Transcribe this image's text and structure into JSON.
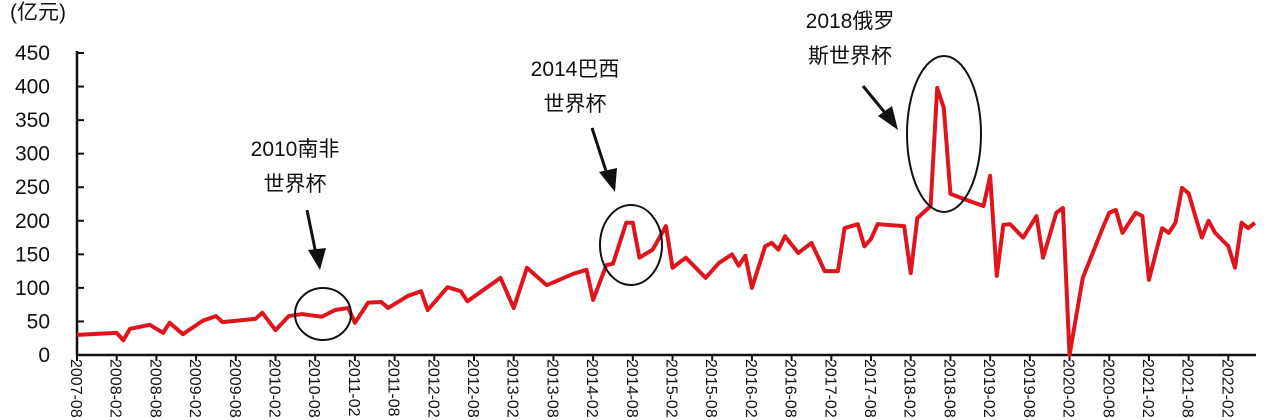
{
  "chart_data": {
    "type": "line",
    "title": "",
    "ylabel": "(亿元)",
    "xlabel": "",
    "ylim": [
      0,
      450
    ],
    "yticks": [
      "0",
      "50",
      "100",
      "150",
      "200",
      "250",
      "300",
      "350",
      "400",
      "450"
    ],
    "xticks": [
      "2007-08",
      "2008-02",
      "2008-08",
      "2009-02",
      "2009-08",
      "2010-02",
      "2010-08",
      "2011-02",
      "2011-08",
      "2012-02",
      "2012-08",
      "2013-02",
      "2013-08",
      "2014-02",
      "2014-08",
      "2015-02",
      "2015-08",
      "2016-02",
      "2016-08",
      "2017-02",
      "2017-08",
      "2018-02",
      "2018-08",
      "2019-02",
      "2019-08",
      "2020-02",
      "2020-08",
      "2021-02",
      "2021-08",
      "2022-02"
    ],
    "grid": false,
    "line_color": "#e0141c",
    "series": [
      {
        "x": [
          "2007-08",
          "2008-02",
          "2008-03",
          "2008-04",
          "2008-07",
          "2008-09",
          "2008-10",
          "2008-12",
          "2009-03",
          "2009-05",
          "2009-06",
          "2009-11",
          "2009-12",
          "2010-02",
          "2010-04",
          "2010-06",
          "2010-09",
          "2010-11",
          "2011-01",
          "2011-02",
          "2011-04",
          "2011-06",
          "2011-07",
          "2011-10",
          "2011-12",
          "2012-01",
          "2012-04",
          "2012-06",
          "2012-07",
          "2012-12",
          "2013-02",
          "2013-04",
          "2013-07",
          "2013-11",
          "2014-01",
          "2014-02",
          "2014-04",
          "2014-05",
          "2014-07",
          "2014-08",
          "2014-09",
          "2014-11",
          "2015-01",
          "2015-02",
          "2015-04",
          "2015-07",
          "2015-09",
          "2015-11",
          "2015-12",
          "2016-01",
          "2016-02",
          "2016-04",
          "2016-05",
          "2016-06",
          "2016-07",
          "2016-09",
          "2016-11",
          "2017-01",
          "2017-03",
          "2017-04",
          "2017-06",
          "2017-07",
          "2017-08",
          "2017-09",
          "2018-01",
          "2018-02",
          "2018-03",
          "2018-05",
          "2018-06",
          "2018-07",
          "2018-08",
          "2018-11",
          "2019-01",
          "2019-02",
          "2019-03",
          "2019-04",
          "2019-05",
          "2019-07",
          "2019-09",
          "2019-10",
          "2019-12",
          "2020-01",
          "2020-02",
          "2020-04",
          "2020-07",
          "2020-08",
          "2020-09",
          "2020-10",
          "2020-12",
          "2021-01",
          "2021-02",
          "2021-04",
          "2021-05",
          "2021-06",
          "2021-07",
          "2021-08",
          "2021-09",
          "2021-10",
          "2021-11",
          "2021-12",
          "2022-02",
          "2022-03",
          "2022-04",
          "2022-05",
          "2022-06"
        ],
        "y": [
          30,
          33,
          22,
          39,
          45,
          33,
          48,
          31,
          51,
          58,
          49,
          54,
          63,
          37,
          58,
          61,
          57,
          67,
          70,
          48,
          78,
          79,
          70,
          88,
          95,
          67,
          101,
          95,
          80,
          115,
          70,
          130,
          104,
          121,
          127,
          82,
          134,
          136,
          197,
          197,
          145,
          157,
          192,
          130,
          145,
          115,
          137,
          150,
          133,
          148,
          100,
          162,
          167,
          157,
          177,
          152,
          167,
          125,
          125,
          189,
          195,
          162,
          173,
          195,
          192,
          122,
          204,
          222,
          398,
          368,
          240,
          229,
          222,
          267,
          118,
          194,
          195,
          175,
          207,
          145,
          212,
          219,
          0,
          115,
          189,
          212,
          216,
          182,
          212,
          207,
          112,
          189,
          182,
          197,
          249,
          241,
          207,
          175,
          200,
          182,
          162,
          130,
          197,
          189,
          197
        ]
      }
    ],
    "annotations": [
      {
        "lines": [
          "2010南非",
          "世界杯"
        ],
        "date": "2010-08"
      },
      {
        "lines": [
          "2014巴西",
          "世界杯"
        ],
        "date": "2014-07"
      },
      {
        "lines": [
          "2018俄罗",
          "斯世界杯"
        ],
        "date": "2018-06"
      }
    ]
  }
}
